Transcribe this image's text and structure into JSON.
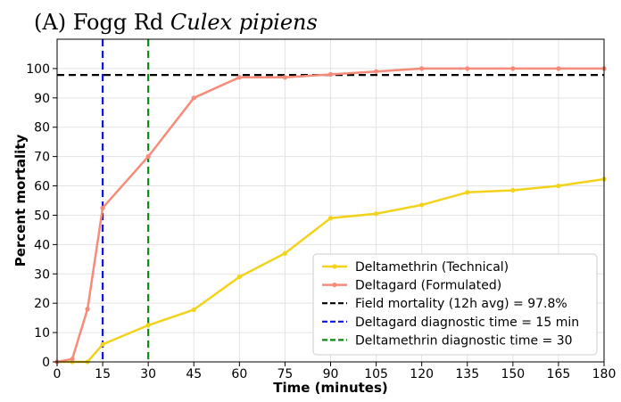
{
  "chart_data": {
    "type": "line",
    "title_prefix": "(A) Fogg Rd ",
    "title_species": "Culex pipiens",
    "xlabel": "Time (minutes)",
    "ylabel": "Percent mortality",
    "xlim": [
      0,
      180
    ],
    "ylim": [
      0,
      110
    ],
    "xticks": [
      0,
      15,
      30,
      45,
      60,
      75,
      90,
      105,
      120,
      135,
      150,
      165,
      180
    ],
    "yticks": [
      0,
      10,
      20,
      30,
      40,
      50,
      60,
      70,
      80,
      90,
      100
    ],
    "grid": true,
    "legend_position": "lower-right",
    "series": [
      {
        "name": "Deltamethrin (Technical)",
        "color": "#f2d21b",
        "x": [
          0,
          5,
          10,
          15,
          30,
          45,
          60,
          75,
          90,
          105,
          120,
          135,
          150,
          165,
          180
        ],
        "values": [
          0,
          0,
          0,
          6,
          12.5,
          17.8,
          29,
          37,
          49,
          50.5,
          53.5,
          57.8,
          58.5,
          60,
          62.3
        ]
      },
      {
        "name": "Deltagard (Formulated)",
        "color": "#f58b78",
        "x": [
          0,
          5,
          10,
          15,
          30,
          45,
          60,
          75,
          90,
          105,
          120,
          135,
          150,
          165,
          180
        ],
        "values": [
          0,
          1,
          18,
          52.5,
          70,
          90,
          97,
          97,
          98,
          99,
          100,
          100,
          100,
          100,
          100
        ]
      }
    ],
    "reference_lines": [
      {
        "name": "Field mortality (12h avg) = 97.8%",
        "orientation": "horizontal",
        "value": 97.8,
        "color": "#000000"
      },
      {
        "name": "Deltagard diagnostic time = 15 min",
        "orientation": "vertical",
        "value": 15,
        "color": "#0a14e6"
      },
      {
        "name": "Deltamethrin diagnostic time = 30",
        "orientation": "vertical",
        "value": 30,
        "color": "#0a8a12"
      }
    ]
  }
}
